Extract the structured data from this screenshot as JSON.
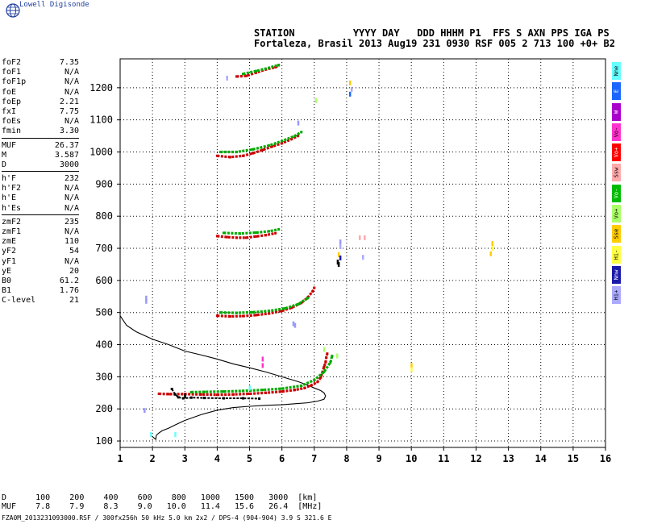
{
  "brand": {
    "name": "Lowell Digisonde"
  },
  "header": {
    "line1": "STATION          YYYY DAY   DDD HHHM P1  FFS S AXN PPS IGA PS",
    "line2": "Fortaleza, Brasil 2013 Aug19 231 0930 RSF 005 2 713 100 +0+ B2"
  },
  "params": [
    [
      {
        "k": "foF2",
        "v": "7.35"
      },
      {
        "k": "foF1",
        "v": "N/A"
      },
      {
        "k": "foF1p",
        "v": "N/A"
      },
      {
        "k": "foE",
        "v": "N/A"
      },
      {
        "k": "foEp",
        "v": "2.21"
      },
      {
        "k": "fxI",
        "v": "7.75"
      },
      {
        "k": "foEs",
        "v": "N/A"
      },
      {
        "k": "fmin",
        "v": "3.30"
      }
    ],
    [
      {
        "k": "MUF",
        "v": "26.37"
      },
      {
        "k": "M",
        "v": "3.587"
      },
      {
        "k": "D",
        "v": "3000"
      }
    ],
    [
      {
        "k": "h'F",
        "v": "232"
      },
      {
        "k": "h'F2",
        "v": "N/A"
      },
      {
        "k": "h'E",
        "v": "N/A"
      },
      {
        "k": "h'Es",
        "v": "N/A"
      }
    ],
    [
      {
        "k": "zmF2",
        "v": "235"
      },
      {
        "k": "zmF1",
        "v": "N/A"
      },
      {
        "k": "zmE",
        "v": "110"
      },
      {
        "k": "yF2",
        "v": "54"
      },
      {
        "k": "yF1",
        "v": "N/A"
      },
      {
        "k": "yE",
        "v": "20"
      },
      {
        "k": "B0",
        "v": "61.2"
      },
      {
        "k": "B1",
        "v": "1.76"
      },
      {
        "k": "C-level",
        "v": "21"
      }
    ]
  ],
  "legend": [
    {
      "label": "Nne",
      "color": "#66ffff"
    },
    {
      "label": "E",
      "color": "#1a66ff"
    },
    {
      "label": "W",
      "color": "#aa00cc"
    },
    {
      "label": "Vo-",
      "color": "#ff33cc"
    },
    {
      "label": "Vo+",
      "color": "#ff0000"
    },
    {
      "label": "Ssw",
      "color": "#ffaaaa"
    },
    {
      "label": "Vo-",
      "color": "#00bb00"
    },
    {
      "label": "Vo+",
      "color": "#aaff66"
    },
    {
      "label": "Sse",
      "color": "#ffcc00"
    },
    {
      "label": "Hi-",
      "color": "#ffff44"
    },
    {
      "label": "Nnw",
      "color": "#1a1aaa"
    },
    {
      "label": "Hi+",
      "color": "#aaaaff"
    }
  ],
  "muf_table": {
    "d_label": "D",
    "muf_label": "MUF",
    "d_values": [
      "100",
      "200",
      "400",
      "600",
      "800",
      "1000",
      "1500",
      "3000"
    ],
    "muf_values": [
      "7.8",
      "7.9",
      "8.3",
      "9.0",
      "10.0",
      "11.4",
      "15.6",
      "26.4"
    ],
    "d_unit": "[km]",
    "muf_unit": "[MHz]"
  },
  "footer": "FZA0M_2013231093000.RSF / 300fx256h 50 kHz 5.0 km 2x2 / DPS-4 (904-904)  3.9 S 321.6 E",
  "chart_data": {
    "type": "scatter",
    "title": "",
    "xlabel": "",
    "ylabel": "",
    "xlim": [
      1,
      16
    ],
    "ylim": [
      80,
      1290
    ],
    "x_ticks": [
      1,
      2,
      3,
      4,
      5,
      6,
      7,
      8,
      9,
      10,
      11,
      12,
      13,
      14,
      15,
      16
    ],
    "y_ticks": [
      100,
      200,
      300,
      400,
      500,
      600,
      700,
      800,
      900,
      1000,
      1100,
      1200
    ],
    "grid": true,
    "legend_position": "right",
    "series": [
      {
        "color": "#cc0000",
        "points": [
          [
            2.2,
            247
          ],
          [
            2.5,
            246
          ],
          [
            3.0,
            246
          ],
          [
            3.5,
            245
          ],
          [
            4.0,
            244
          ],
          [
            4.5,
            245
          ],
          [
            5.0,
            247
          ],
          [
            5.5,
            250
          ],
          [
            6.0,
            254
          ],
          [
            6.4,
            259
          ],
          [
            6.7,
            265
          ],
          [
            6.9,
            273
          ],
          [
            7.1,
            284
          ],
          [
            7.2,
            298
          ],
          [
            7.25,
            313
          ],
          [
            7.3,
            330
          ],
          [
            7.35,
            345
          ],
          [
            7.37,
            360
          ],
          [
            7.4,
            372
          ]
        ]
      },
      {
        "color": "#00aa00",
        "points": [
          [
            3.2,
            252
          ],
          [
            3.6,
            253
          ],
          [
            4.2,
            254
          ],
          [
            4.8,
            256
          ],
          [
            5.4,
            259
          ],
          [
            6.0,
            263
          ],
          [
            6.6,
            272
          ],
          [
            7.0,
            290
          ],
          [
            7.3,
            315
          ],
          [
            7.5,
            345
          ],
          [
            7.55,
            365
          ]
        ]
      },
      {
        "color": "#000000",
        "points": [
          [
            2.6,
            262
          ],
          [
            2.7,
            245
          ],
          [
            2.8,
            236
          ],
          [
            2.95,
            233
          ],
          [
            3.2,
            235
          ],
          [
            3.6,
            234
          ],
          [
            4.2,
            233
          ],
          [
            4.8,
            233
          ],
          [
            5.3,
            232
          ]
        ]
      },
      {
        "color": "#cc0000",
        "points": [
          [
            4.0,
            490
          ],
          [
            4.4,
            488
          ],
          [
            4.8,
            489
          ],
          [
            5.2,
            492
          ],
          [
            5.6,
            497
          ],
          [
            6.0,
            505
          ],
          [
            6.3,
            515
          ],
          [
            6.6,
            530
          ],
          [
            6.8,
            547
          ],
          [
            6.95,
            566
          ],
          [
            7.0,
            577
          ]
        ]
      },
      {
        "color": "#00aa00",
        "points": [
          [
            4.1,
            500
          ],
          [
            4.6,
            499
          ],
          [
            5.1,
            501
          ],
          [
            5.6,
            505
          ],
          [
            6.1,
            513
          ],
          [
            6.5,
            526
          ],
          [
            6.8,
            545
          ]
        ]
      },
      {
        "color": "#cc0000",
        "points": [
          [
            4.0,
            738
          ],
          [
            4.3,
            735
          ],
          [
            4.6,
            733
          ],
          [
            4.9,
            733
          ],
          [
            5.2,
            737
          ],
          [
            5.5,
            741
          ],
          [
            5.8,
            747
          ]
        ]
      },
      {
        "color": "#00aa00",
        "points": [
          [
            4.2,
            748
          ],
          [
            4.7,
            746
          ],
          [
            5.2,
            749
          ],
          [
            5.6,
            753
          ],
          [
            5.9,
            759
          ]
        ]
      },
      {
        "color": "#cc0000",
        "points": [
          [
            4.0,
            988
          ],
          [
            4.4,
            984
          ],
          [
            4.8,
            988
          ],
          [
            5.1,
            996
          ],
          [
            5.4,
            1006
          ],
          [
            5.7,
            1017
          ],
          [
            6.0,
            1027
          ],
          [
            6.3,
            1040
          ],
          [
            6.5,
            1050
          ]
        ]
      },
      {
        "color": "#00aa00",
        "points": [
          [
            4.1,
            1000
          ],
          [
            4.6,
            1000
          ],
          [
            5.1,
            1008
          ],
          [
            5.6,
            1020
          ],
          [
            6.0,
            1034
          ],
          [
            6.4,
            1050
          ],
          [
            6.6,
            1062
          ]
        ]
      },
      {
        "color": "#cc0000",
        "points": [
          [
            4.6,
            1235
          ],
          [
            4.9,
            1237
          ],
          [
            5.2,
            1247
          ],
          [
            5.5,
            1257
          ],
          [
            5.8,
            1264
          ],
          [
            5.9,
            1270
          ]
        ]
      },
      {
        "color": "#00aa00",
        "points": [
          [
            4.8,
            1243
          ],
          [
            5.2,
            1252
          ],
          [
            5.6,
            1262
          ],
          [
            5.9,
            1271
          ]
        ]
      }
    ],
    "scatter_points": [
      [
        1.8,
        545,
        "#9999ff"
      ],
      [
        1.8,
        535,
        "#9999ff"
      ],
      [
        1.75,
        195,
        "#9999ff"
      ],
      [
        1.95,
        120,
        "#66ffff"
      ],
      [
        2.7,
        120,
        "#66ffff"
      ],
      [
        5.4,
        355,
        "#ff33cc"
      ],
      [
        5.4,
        335,
        "#ff33cc"
      ],
      [
        6.35,
        465,
        "#9999ff"
      ],
      [
        6.4,
        460,
        "#9999ff"
      ],
      [
        7.7,
        365,
        "#aaff66"
      ],
      [
        7.3,
        385,
        "#aaff66"
      ],
      [
        7.05,
        1160,
        "#aaff66"
      ],
      [
        8.1,
        1215,
        "#ffcc00"
      ],
      [
        8.1,
        1180,
        "#1a66ff"
      ],
      [
        8.15,
        1195,
        "#aaaaff"
      ],
      [
        7.8,
        720,
        "#9999ff"
      ],
      [
        7.8,
        705,
        "#aaaaff"
      ],
      [
        7.75,
        680,
        "#ffcc00"
      ],
      [
        7.8,
        670,
        "#1a1aaa"
      ],
      [
        7.72,
        657,
        "#000000"
      ],
      [
        7.75,
        650,
        "#000000"
      ],
      [
        8.4,
        733,
        "#ffaaaa"
      ],
      [
        8.55,
        733,
        "#ffaaaa"
      ],
      [
        8.5,
        672,
        "#aaaaff"
      ],
      [
        10.0,
        335,
        "#ffcc00"
      ],
      [
        10.0,
        322,
        "#ffff44"
      ],
      [
        12.5,
        715,
        "#ffcc00"
      ],
      [
        12.5,
        700,
        "#ffff44"
      ],
      [
        12.45,
        683,
        "#ffcc00"
      ],
      [
        4.3,
        1230,
        "#aaaaff"
      ],
      [
        6.5,
        1090,
        "#9999ff"
      ],
      [
        5.0,
        265,
        "#66ffff"
      ],
      [
        3.0,
        240,
        "#000000"
      ]
    ],
    "profile": [
      [
        1.0,
        490
      ],
      [
        1.2,
        460
      ],
      [
        1.5,
        440
      ],
      [
        2.0,
        417
      ],
      [
        2.5,
        400
      ],
      [
        3.0,
        380
      ],
      [
        3.5,
        368
      ],
      [
        4.0,
        355
      ],
      [
        4.5,
        340
      ],
      [
        5.0,
        328
      ],
      [
        5.5,
        315
      ],
      [
        6.0,
        300
      ],
      [
        6.5,
        285
      ],
      [
        6.8,
        274
      ],
      [
        7.0,
        265
      ],
      [
        7.2,
        257
      ],
      [
        7.3,
        250
      ],
      [
        7.35,
        240
      ],
      [
        7.3,
        230
      ],
      [
        7.1,
        224
      ],
      [
        6.8,
        219
      ],
      [
        6.4,
        216
      ],
      [
        6.0,
        213
      ],
      [
        5.5,
        211
      ],
      [
        5.0,
        208
      ],
      [
        4.5,
        204
      ],
      [
        4.0,
        196
      ],
      [
        3.5,
        182
      ],
      [
        3.0,
        164
      ],
      [
        2.7,
        150
      ],
      [
        2.5,
        140
      ],
      [
        2.3,
        132
      ],
      [
        2.2,
        125
      ],
      [
        2.12,
        118
      ],
      [
        2.1,
        105
      ],
      [
        1.95,
        118
      ]
    ]
  }
}
